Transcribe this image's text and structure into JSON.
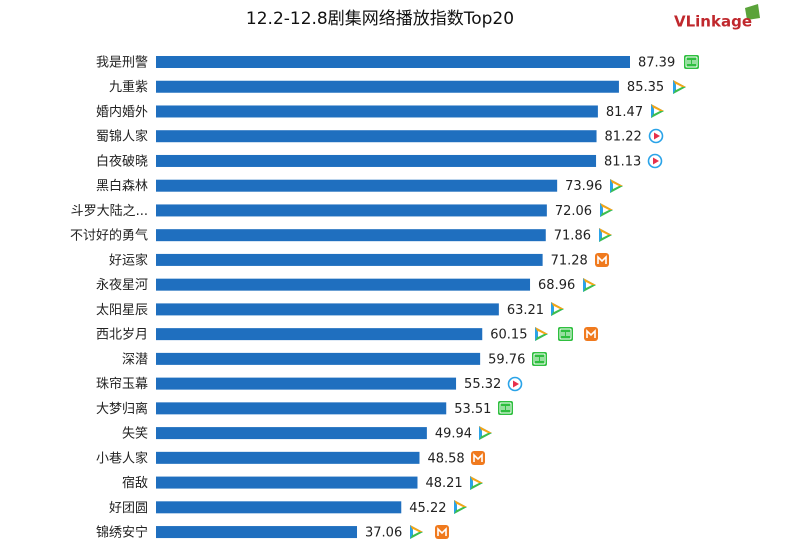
{
  "logo": "VLinkage",
  "chart_data": {
    "type": "bar",
    "orientation": "horizontal",
    "title": "12.2-12.8剧集网络播放指数Top20",
    "categories": [
      "我是刑警",
      "九重紫",
      "婚内婚外",
      "蜀锦人家",
      "白夜破晓",
      "黑白森林",
      "斗罗大陆之...",
      "不讨好的勇气",
      "好运家",
      "永夜星河",
      "太阳星辰",
      "西北岁月",
      "深潜",
      "珠帘玉幕",
      "大梦归离",
      "失笑",
      "小巷人家",
      "宿敌",
      "好团圆",
      "锦绣安宁"
    ],
    "values": [
      87.39,
      85.35,
      81.47,
      81.22,
      81.13,
      73.96,
      72.06,
      71.86,
      71.28,
      68.96,
      63.21,
      60.15,
      59.76,
      55.32,
      53.51,
      49.94,
      48.58,
      48.21,
      45.22,
      37.06
    ],
    "color": "#1f6fbf"
  }
}
